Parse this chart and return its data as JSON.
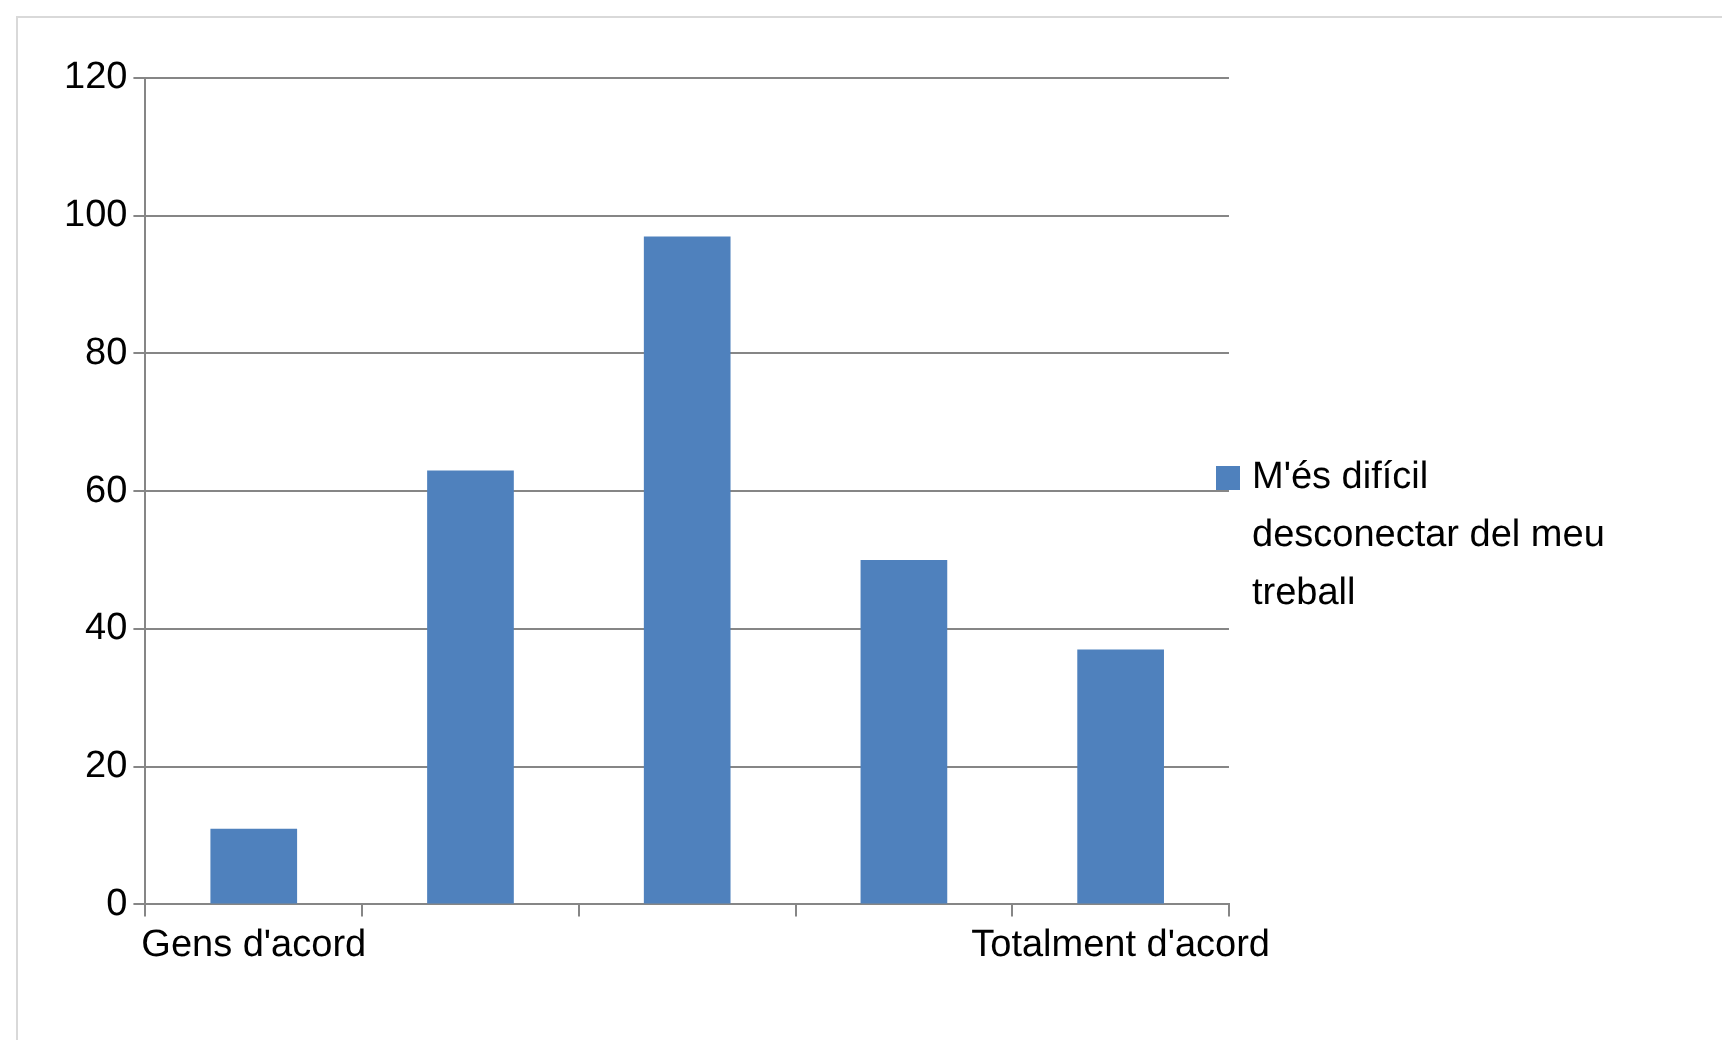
{
  "chart_data": {
    "type": "bar",
    "categories": [
      "Gens d'acord",
      null,
      null,
      null,
      "Totalment d'acord"
    ],
    "series": [
      {
        "name": "M'és difícil desconectar del meu treball",
        "color": "#4f81bd",
        "values": [
          11,
          63,
          97,
          50,
          37
        ]
      }
    ],
    "ylim": [
      0,
      120
    ],
    "yticks": [
      0,
      20,
      40,
      60,
      80,
      100,
      120
    ],
    "grid": "y",
    "legend": "right"
  }
}
